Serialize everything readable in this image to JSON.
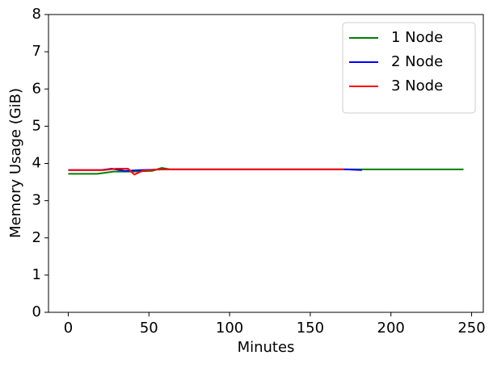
{
  "chart_data": {
    "type": "line",
    "xlabel": "Minutes",
    "ylabel": "Memory Usage (GiB)",
    "xlim": [
      -12.25,
      257.25
    ],
    "xticks": [
      0,
      50,
      100,
      150,
      200,
      250
    ],
    "ylim": [
      0,
      8
    ],
    "yticks": [
      0,
      1,
      2,
      3,
      4,
      5,
      6,
      7,
      8
    ],
    "legend": "upper-right",
    "series": [
      {
        "name": "1 Node",
        "color": "#008000",
        "x": [
          0,
          18,
          28,
          40,
          52,
          58,
          63,
          245
        ],
        "values": [
          3.72,
          3.72,
          3.78,
          3.78,
          3.8,
          3.88,
          3.84,
          3.84
        ]
      },
      {
        "name": "2 Node",
        "color": "#0000ff",
        "x": [
          0,
          20,
          27,
          35,
          45,
          60,
          172,
          182
        ],
        "values": [
          3.82,
          3.82,
          3.86,
          3.8,
          3.82,
          3.84,
          3.84,
          3.82
        ]
      },
      {
        "name": "3 Node",
        "color": "#ff0000",
        "x": [
          0,
          22,
          30,
          37,
          41,
          46,
          55,
          171
        ],
        "values": [
          3.82,
          3.82,
          3.86,
          3.86,
          3.7,
          3.8,
          3.84,
          3.84
        ]
      }
    ]
  }
}
